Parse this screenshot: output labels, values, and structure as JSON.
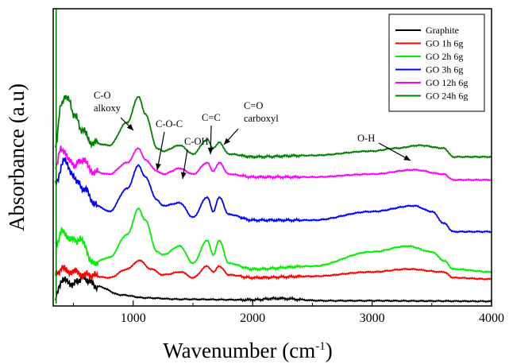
{
  "chart_data": {
    "type": "line",
    "xlabel_main": "Wavenumber (cm",
    "xlabel_sup": "-1",
    "xlabel_close": ")",
    "ylabel": "Absorbance (a.u)",
    "xlim": [
      330,
      4000
    ],
    "ylim": [
      0,
      100
    ],
    "x_ticks": [
      "1000",
      "2000",
      "3000",
      "4000"
    ],
    "grid": false,
    "legend_position": "top-right",
    "annotations": [
      {
        "lines": [
          "C-O",
          "alkoxy"
        ],
        "points_to": 1045
      },
      {
        "lines": [
          "C-O-C"
        ],
        "points_to": 1190
      },
      {
        "lines": [
          "C-OH"
        ],
        "points_to": 1390
      },
      {
        "lines": [
          "C=C"
        ],
        "points_to": 1625
      },
      {
        "lines": [
          "C=O",
          "carboxyl"
        ],
        "points_to": 1725
      },
      {
        "lines": [
          "O-H"
        ],
        "points_to": 3400
      }
    ],
    "series": [
      {
        "name": "Graphite",
        "color": "#000000",
        "x": [
          350,
          400,
          500,
          580,
          700,
          900,
          1100,
          1400,
          2000,
          2200,
          2600,
          3000,
          3500,
          4000
        ],
        "y": [
          2,
          8,
          7,
          9,
          6,
          3,
          2,
          1.5,
          1.3,
          1.8,
          1,
          1,
          0.9,
          0.8
        ]
      },
      {
        "name": "GO 1h 6g",
        "color": "#ff0000",
        "x": [
          350,
          400,
          500,
          600,
          800,
          950,
          1050,
          1150,
          1250,
          1400,
          1500,
          1620,
          1670,
          1720,
          1800,
          2000,
          2500,
          3000,
          3300,
          3600,
          3680,
          4000
        ],
        "y": [
          10,
          12,
          11,
          10,
          9,
          12,
          15,
          12,
          10,
          11,
          9,
          13,
          11,
          13,
          10,
          9,
          9.5,
          11,
          12,
          11,
          9,
          8.5
        ]
      },
      {
        "name": "GO 2h 6g",
        "color": "#00ee00",
        "x": [
          350,
          400,
          500,
          580,
          650,
          800,
          950,
          1045,
          1100,
          1200,
          1250,
          1390,
          1500,
          1620,
          1670,
          1720,
          1800,
          2000,
          2500,
          3000,
          3300,
          3500,
          3600,
          3680,
          4000
        ],
        "y": [
          20,
          25,
          22,
          22,
          14,
          16,
          24,
          33,
          29,
          18,
          17,
          20,
          14,
          22,
          17,
          22,
          14,
          12,
          13,
          18,
          20,
          18,
          15,
          12,
          11
        ]
      },
      {
        "name": "GO 3h 6g",
        "color": "#0000ff",
        "x": [
          350,
          420,
          450,
          500,
          580,
          700,
          800,
          950,
          1045,
          1100,
          1200,
          1250,
          1390,
          1500,
          1620,
          1670,
          1720,
          1800,
          2000,
          2500,
          3000,
          3350,
          3500,
          3600,
          3680,
          4000
        ],
        "y": [
          42,
          50,
          48,
          44,
          40,
          34,
          32,
          40,
          48,
          44,
          36,
          34,
          35,
          30,
          37,
          32,
          37,
          31,
          29,
          29,
          32,
          34,
          32,
          28,
          25,
          25
        ]
      },
      {
        "name": "GO 12h 6g",
        "color": "#ff00ff",
        "x": [
          350,
          400,
          450,
          500,
          580,
          650,
          800,
          950,
          1045,
          1100,
          1200,
          1250,
          1390,
          1500,
          1620,
          1670,
          1720,
          1800,
          2000,
          2500,
          3000,
          3350,
          3600,
          3680,
          4000
        ],
        "y": [
          48,
          54,
          51,
          48,
          50,
          46,
          45,
          49,
          54,
          50,
          46,
          45,
          47,
          45,
          49,
          46,
          49,
          45,
          44,
          44,
          45,
          46.5,
          45,
          43,
          43
        ]
      },
      {
        "name": "GO 24h 6g",
        "color": "#008000",
        "x": [
          350,
          400,
          450,
          500,
          580,
          650,
          800,
          950,
          1045,
          1100,
          1200,
          1250,
          1390,
          1500,
          1620,
          1670,
          1720,
          1800,
          2000,
          2500,
          3000,
          3200,
          3400,
          3600,
          3680,
          4000
        ],
        "y": [
          55,
          70,
          72,
          66,
          60,
          56,
          55,
          63,
          72,
          66,
          54,
          53,
          55,
          52,
          57,
          54,
          56,
          52,
          51,
          51.5,
          53,
          54,
          55,
          54,
          51,
          51
        ]
      }
    ],
    "spike": {
      "x": 355,
      "y_range": [
        0,
        100
      ]
    }
  }
}
